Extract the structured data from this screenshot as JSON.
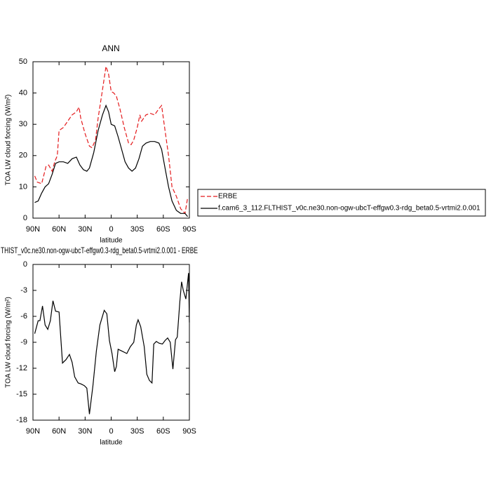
{
  "chart_data": [
    {
      "type": "line",
      "title": "ANN",
      "xlabel": "latitude",
      "ylabel": "TOA LW cloud forcing (W/m²)",
      "xlim": [
        90,
        -90
      ],
      "xticks": [
        {
          "value": 90,
          "label": "90N"
        },
        {
          "value": 60,
          "label": "60N"
        },
        {
          "value": 30,
          "label": "30N"
        },
        0,
        {
          "value": -30,
          "label": "30S"
        },
        {
          "value": -60,
          "label": "60S"
        },
        {
          "value": -90,
          "label": "90S"
        }
      ],
      "ylim": [
        0,
        50
      ],
      "yticks": [
        0,
        10,
        20,
        30,
        40,
        50
      ],
      "legend": "right",
      "series": [
        {
          "name": "ERBE",
          "color": "#e41a1c",
          "dashed": true,
          "x": [
            88,
            85,
            80,
            75,
            72,
            68,
            65,
            62,
            60,
            55,
            50,
            45,
            40,
            37,
            35,
            30,
            25,
            22,
            18,
            15,
            10,
            6,
            3,
            0,
            -3,
            -6,
            -10,
            -15,
            -20,
            -23,
            -26,
            -30,
            -33,
            -35,
            -40,
            -45,
            -50,
            -55,
            -58,
            -62,
            -66,
            -70,
            -75,
            -80,
            -85,
            -88
          ],
          "values": [
            13.5,
            11.5,
            11,
            16.5,
            17,
            15,
            18,
            20,
            28,
            29,
            31,
            33,
            34,
            35.5,
            32,
            27,
            23,
            22.5,
            25,
            32,
            41,
            48.5,
            46,
            40.5,
            40,
            39,
            35,
            29,
            24,
            23.5,
            25,
            29,
            33,
            31,
            33,
            33.5,
            33,
            35,
            36,
            28,
            20,
            10,
            7,
            3,
            1.5,
            6.5
          ]
        },
        {
          "name": "f.cam6_3_112.FLTHIST_v0c.ne30.non-ogw-ubcT-effgw0.3-rdg_beta0.5-vrtmi2.0.001",
          "color": "#000000",
          "dashed": false,
          "x": [
            88,
            84,
            80,
            76,
            72,
            68,
            64,
            60,
            55,
            50,
            45,
            40,
            36,
            32,
            28,
            25,
            20,
            15,
            10,
            6,
            3,
            0,
            -4,
            -8,
            -12,
            -16,
            -20,
            -24,
            -28,
            -32,
            -36,
            -40,
            -45,
            -50,
            -55,
            -58,
            -62,
            -66,
            -70,
            -75,
            -80,
            -85,
            -88
          ],
          "values": [
            5,
            5.5,
            8,
            10,
            11,
            14,
            17.5,
            18,
            18,
            17.5,
            19,
            19.5,
            17,
            15.5,
            15,
            16,
            21,
            28,
            33,
            36,
            34,
            30,
            29.5,
            26,
            22,
            18,
            16,
            15,
            16,
            19,
            23,
            24,
            24.5,
            24.5,
            24,
            22,
            16,
            10,
            5.5,
            2.5,
            1.5,
            1.5,
            0.5
          ]
        }
      ]
    },
    {
      "type": "line",
      "title": "THIST_v0c.ne30.non-ogw-ubcT-effgw0.3-rdg_beta0.5-vrtmi2.0.001 - ERBE",
      "xlabel": "latitude",
      "ylabel": "TOA LW cloud forcing (W/m²)",
      "xlim": [
        90,
        -90
      ],
      "xticks": [
        {
          "value": 90,
          "label": "90N"
        },
        {
          "value": 60,
          "label": "60N"
        },
        {
          "value": 30,
          "label": "30N"
        },
        0,
        {
          "value": -30,
          "label": "30S"
        },
        {
          "value": -60,
          "label": "60S"
        },
        {
          "value": -90,
          "label": "90S"
        }
      ],
      "ylim": [
        -18,
        0
      ],
      "yticks": [
        0,
        -3,
        -6,
        -9,
        -12,
        -15,
        -18
      ],
      "series": [
        {
          "color": "#000000",
          "dashed": false,
          "x": [
            88,
            84,
            82,
            79,
            76,
            73,
            70,
            67,
            64,
            60,
            56,
            52,
            48,
            45,
            42,
            38,
            35,
            31,
            28,
            25,
            21,
            17,
            13,
            8,
            5,
            2,
            -1,
            -4,
            -6,
            -8,
            -12,
            -18,
            -22,
            -26,
            -29,
            -31,
            -34,
            -38,
            -41,
            -44,
            -47,
            -49,
            -52,
            -55,
            -59,
            -62,
            -65,
            -68,
            -71,
            -74,
            -76,
            -79,
            -81,
            -83,
            -86,
            -89,
            -90
          ],
          "values": [
            -8,
            -6.5,
            -6.5,
            -4.8,
            -7,
            -7.5,
            -6.5,
            -4.2,
            -5.4,
            -5.5,
            -11.4,
            -11,
            -10.4,
            -11.3,
            -13,
            -13.7,
            -13.8,
            -14,
            -14.3,
            -17.3,
            -14,
            -10,
            -7,
            -5.3,
            -5.7,
            -8.8,
            -10.3,
            -12.4,
            -11.8,
            -9.8,
            -10,
            -10.3,
            -9.5,
            -9,
            -7,
            -6.4,
            -7.2,
            -9.5,
            -12.7,
            -13.4,
            -13.7,
            -9.2,
            -8.9,
            -9.1,
            -9.2,
            -8.8,
            -8.5,
            -9,
            -12.1,
            -8.7,
            -8.4,
            -4.3,
            -2,
            -3,
            -4,
            -1,
            -6.7
          ]
        }
      ]
    }
  ]
}
